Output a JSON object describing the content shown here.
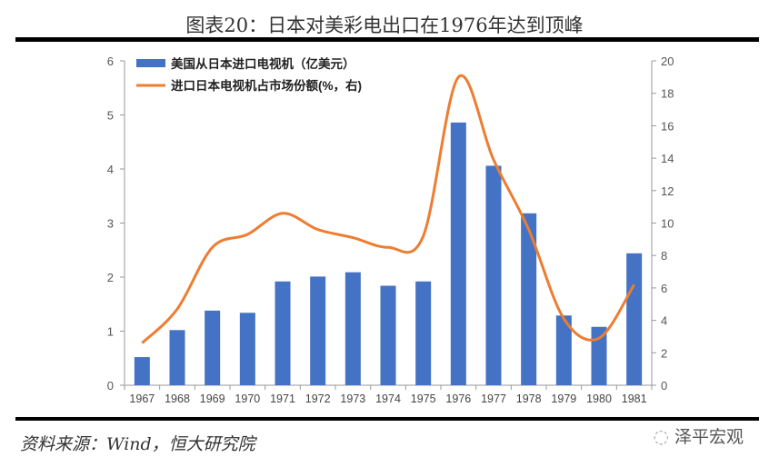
{
  "title": "图表20：日本对美彩电出口在1976年达到顶峰",
  "source": "资料来源：Wind，恒大研究院",
  "watermark": "泽平宏观",
  "colors": {
    "bar": "#4472C4",
    "line": "#ED7D31"
  },
  "chart_data": {
    "type": "bar+line",
    "categories": [
      "1967",
      "1968",
      "1969",
      "1970",
      "1971",
      "1972",
      "1973",
      "1974",
      "1975",
      "1976",
      "1977",
      "1978",
      "1979",
      "1980",
      "1981"
    ],
    "series": [
      {
        "name": "美国从日本进口电视机（亿美元）",
        "type": "bar",
        "axis": "left",
        "values": [
          0.52,
          1.02,
          1.38,
          1.34,
          1.92,
          2.01,
          2.09,
          1.84,
          1.92,
          4.86,
          4.06,
          3.18,
          1.29,
          1.08,
          2.44
        ]
      },
      {
        "name": "进口日本电视机占市场份额(%，右)",
        "type": "line",
        "axis": "right",
        "values": [
          2.6,
          4.7,
          8.5,
          9.3,
          10.6,
          9.6,
          9.1,
          8.5,
          9.2,
          19.0,
          13.9,
          9.6,
          4.1,
          2.9,
          6.2
        ]
      }
    ],
    "ylim_left": [
      0,
      6
    ],
    "yticks_left": [
      "0",
      "1",
      "2",
      "3",
      "4",
      "5",
      "6"
    ],
    "ylim_right": [
      0,
      20
    ],
    "yticks_right": [
      "0",
      "2",
      "4",
      "6",
      "8",
      "10",
      "12",
      "14",
      "16",
      "18",
      "20"
    ],
    "legend": "top-left",
    "grid": false
  }
}
